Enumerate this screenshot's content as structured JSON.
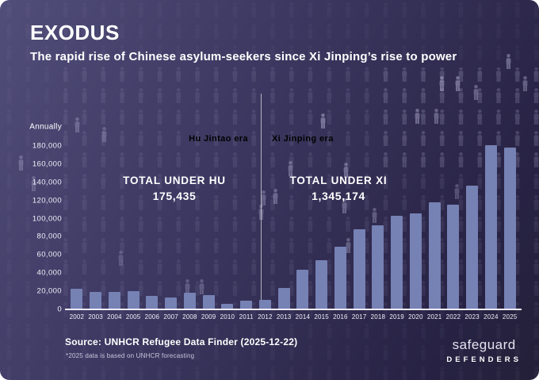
{
  "header": {
    "title": "EXODUS",
    "subtitle": "The rapid rise of Chinese asylum-seekers since Xi Jinping’s rise to power"
  },
  "chart_data": {
    "type": "bar",
    "y_axis_title": "Annually",
    "categories": [
      "2002",
      "2003",
      "2004",
      "2005",
      "2006",
      "2007",
      "2008",
      "2009",
      "2010",
      "2011",
      "2012",
      "2013",
      "2014",
      "2015",
      "2016",
      "2017",
      "2018",
      "2019",
      "2020",
      "2021",
      "2022",
      "2023",
      "2024",
      "2025"
    ],
    "values": [
      23000,
      19000,
      19500,
      20000,
      14500,
      13500,
      18500,
      16000,
      6500,
      9500,
      10500,
      23500,
      44000,
      54000,
      69000,
      88000,
      93000,
      103000,
      106000,
      118000,
      115000,
      136000,
      181000,
      178000
    ],
    "ylim": [
      0,
      180000
    ],
    "y_tick_values": [
      0,
      20000,
      40000,
      60000,
      80000,
      100000,
      120000,
      140000,
      160000,
      180000
    ],
    "y_tick_labels": [
      "0",
      "20,000",
      "40,000",
      "60,000",
      "80,000",
      "100,000",
      "120,000",
      "140,000",
      "160,000",
      "180,000"
    ],
    "grid": "off",
    "legend": "none",
    "divider_after": "2012",
    "eras": {
      "hu": {
        "label": "Hu Jintao era",
        "total_label": "TOTAL UNDER HU",
        "total_value": "175,435"
      },
      "xi": {
        "label": "Xi Jinping era",
        "total_label": "TOTAL UNDER XI",
        "total_value": "1,345,174"
      }
    }
  },
  "footer": {
    "source": "Source: UNHCR Refugee Data Finder (2025-12-22)",
    "footnote": "*2025 data is based on UNHCR forecasting"
  },
  "logo": {
    "line1": "safeguard",
    "line2": "DEFENDERS"
  },
  "colors": {
    "bar": "#7681b4",
    "background_top": "#514e7a",
    "background_bottom": "#242038",
    "era_label": "#827da5",
    "axis": "#eceaf6"
  }
}
